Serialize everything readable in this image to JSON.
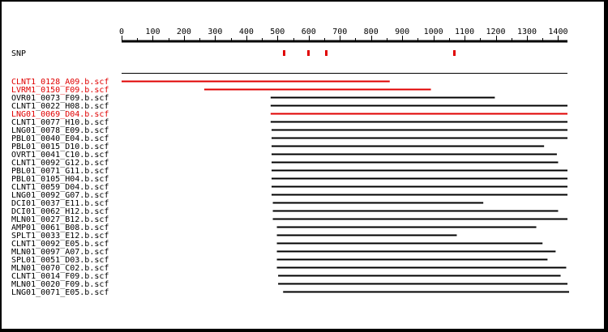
{
  "ruler": {
    "min": 0,
    "max": 1430,
    "ticks": [
      0,
      100,
      200,
      300,
      400,
      500,
      600,
      700,
      800,
      900,
      1000,
      1100,
      1200,
      1300,
      1400
    ]
  },
  "snp": {
    "label": "SNP",
    "positions": [
      521,
      598,
      655,
      1066
    ],
    "color": "#e00000"
  },
  "colors": {
    "highlight": "#e00000",
    "normal": "#000000"
  },
  "reads": [
    {
      "name": "CLNT1_0128_A09.b.scf",
      "start": 0,
      "end": 860,
      "highlight": true
    },
    {
      "name": "LVRM1_0150_F09.b.scf",
      "start": 265,
      "end": 992,
      "highlight": true
    },
    {
      "name": "OVR01_0073_F09.b.scf",
      "start": 478,
      "end": 1197,
      "highlight": false
    },
    {
      "name": "CLNT1_0022_H08.b.scf",
      "start": 478,
      "end": 1430,
      "highlight": false
    },
    {
      "name": "LNG01_0069_D04.b.scf",
      "start": 478,
      "end": 1430,
      "highlight": true
    },
    {
      "name": "CLNT1_0077_H10.b.scf",
      "start": 478,
      "end": 1430,
      "highlight": false
    },
    {
      "name": "LNG01_0078_E09.b.scf",
      "start": 481,
      "end": 1430,
      "highlight": false
    },
    {
      "name": "PBL01_0040_E04.b.scf",
      "start": 481,
      "end": 1430,
      "highlight": false
    },
    {
      "name": "PBL01_0015_D10.b.scf",
      "start": 481,
      "end": 1355,
      "highlight": false
    },
    {
      "name": "OVRT1_0041_C10.b.scf",
      "start": 481,
      "end": 1396,
      "highlight": false
    },
    {
      "name": "CLNT1_0092_G12.b.scf",
      "start": 481,
      "end": 1400,
      "highlight": false
    },
    {
      "name": "PBL01_0071_G11.b.scf",
      "start": 481,
      "end": 1430,
      "highlight": false
    },
    {
      "name": "PBL01_0105_H04.b.scf",
      "start": 481,
      "end": 1430,
      "highlight": false
    },
    {
      "name": "CLNT1_0059_D04.b.scf",
      "start": 481,
      "end": 1430,
      "highlight": false
    },
    {
      "name": "LNG01_0092_G07.b.scf",
      "start": 481,
      "end": 1430,
      "highlight": false
    },
    {
      "name": "DCI01_0037_E11.b.scf",
      "start": 485,
      "end": 1160,
      "highlight": false
    },
    {
      "name": "DCI01_0062_H12.b.scf",
      "start": 485,
      "end": 1400,
      "highlight": false
    },
    {
      "name": "MLN01_0027_B12.b.scf",
      "start": 485,
      "end": 1430,
      "highlight": false
    },
    {
      "name": "AMP01_0061_B08.b.scf",
      "start": 498,
      "end": 1330,
      "highlight": false
    },
    {
      "name": "SPLT1_0033_E12.b.scf",
      "start": 498,
      "end": 1075,
      "highlight": false
    },
    {
      "name": "CLNT1_0092_E05.b.scf",
      "start": 498,
      "end": 1350,
      "highlight": false
    },
    {
      "name": "MLN01_0097_A07.b.scf",
      "start": 498,
      "end": 1392,
      "highlight": false
    },
    {
      "name": "SPL01_0051_D03.b.scf",
      "start": 498,
      "end": 1366,
      "highlight": false
    },
    {
      "name": "MLN01_0070_C02.b.scf",
      "start": 498,
      "end": 1426,
      "highlight": false
    },
    {
      "name": "CLNT1_0014_F09.b.scf",
      "start": 502,
      "end": 1408,
      "highlight": false
    },
    {
      "name": "MLN01_0020_F09.b.scf",
      "start": 502,
      "end": 1430,
      "highlight": false
    },
    {
      "name": "LNG01_0071_E05.b.scf",
      "start": 518,
      "end": 1438,
      "highlight": false
    }
  ]
}
